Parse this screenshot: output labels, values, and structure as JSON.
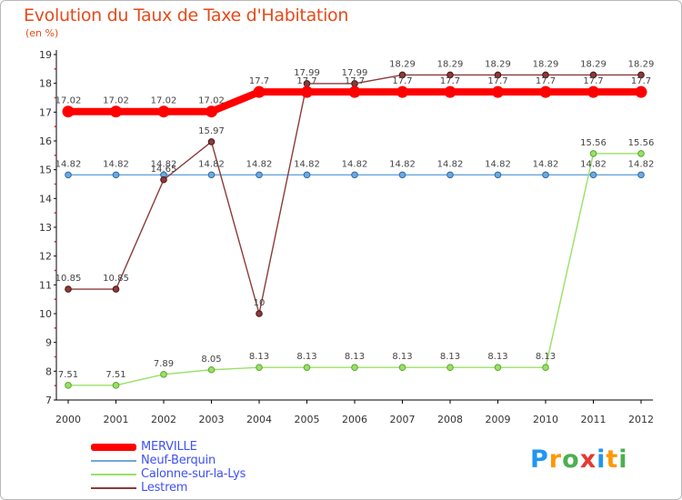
{
  "chart_data": {
    "type": "line",
    "title": "Evolution du Taux de Taxe d'Habitation",
    "subtitle": "(en %)",
    "x": [
      "2000",
      "2001",
      "2002",
      "2003",
      "2004",
      "2005",
      "2006",
      "2007",
      "2008",
      "2009",
      "2010",
      "2011",
      "2012"
    ],
    "ylim": [
      7,
      19
    ],
    "yticks": [
      7,
      8,
      9,
      10,
      11,
      12,
      13,
      14,
      15,
      16,
      17,
      18,
      19
    ],
    "grid": false,
    "legend_position": "bottom-left",
    "series": [
      {
        "name": "MERVILLE",
        "color": "#ff0000",
        "values": [
          17.02,
          17.02,
          17.02,
          17.02,
          17.7,
          17.7,
          17.7,
          17.7,
          17.7,
          17.7,
          17.7,
          17.7,
          17.7
        ],
        "labels": [
          "17.02",
          "17.02",
          "17.02",
          "17.02",
          "17.7",
          "17.7",
          "17.7",
          "17.7",
          "17.7",
          "17.7",
          "17.7",
          "17.7",
          "17.7"
        ]
      },
      {
        "name": "Neuf-Berquin",
        "color": "#6fa8dc",
        "values": [
          14.82,
          14.82,
          14.82,
          14.82,
          14.82,
          14.82,
          14.82,
          14.82,
          14.82,
          14.82,
          14.82,
          14.82,
          14.82
        ],
        "labels": [
          "14.82",
          "14.82",
          "14.82",
          "14.82",
          "14.82",
          "14.82",
          "14.82",
          "14.82",
          "14.82",
          "14.82",
          "14.82",
          "14.82",
          "14.82"
        ]
      },
      {
        "name": "Calonne-sur-la-Lys",
        "color": "#99e066",
        "values": [
          7.51,
          7.51,
          7.89,
          8.05,
          8.13,
          8.13,
          8.13,
          8.13,
          8.13,
          8.13,
          8.13,
          15.56,
          15.56
        ],
        "labels": [
          "7.51",
          "7.51",
          "7.89",
          "8.05",
          "8.13",
          "8.13",
          "8.13",
          "8.13",
          "8.13",
          "8.13",
          "8.13",
          "15.56",
          "15.56"
        ]
      },
      {
        "name": "Lestrem",
        "color": "#8b3a3a",
        "values": [
          10.85,
          10.85,
          14.65,
          15.97,
          10,
          17.99,
          17.99,
          18.29,
          18.29,
          18.29,
          18.29,
          18.29,
          18.29
        ],
        "labels": [
          "10.85",
          "10.85",
          "14.65",
          "15.97",
          "10",
          "17.99",
          "17.99",
          "18.29",
          "18.29",
          "18.29",
          "18.29",
          "18.29",
          "18.29"
        ]
      }
    ]
  },
  "logo": {
    "text": "Proxiti",
    "letters": [
      "P",
      "r",
      "o",
      "x",
      "i",
      "t",
      "i"
    ],
    "colors": [
      "#2196f3",
      "#ff9800",
      "#4caf50",
      "#e53935",
      "#2196f3",
      "#ff9800",
      "#4caf50"
    ]
  }
}
